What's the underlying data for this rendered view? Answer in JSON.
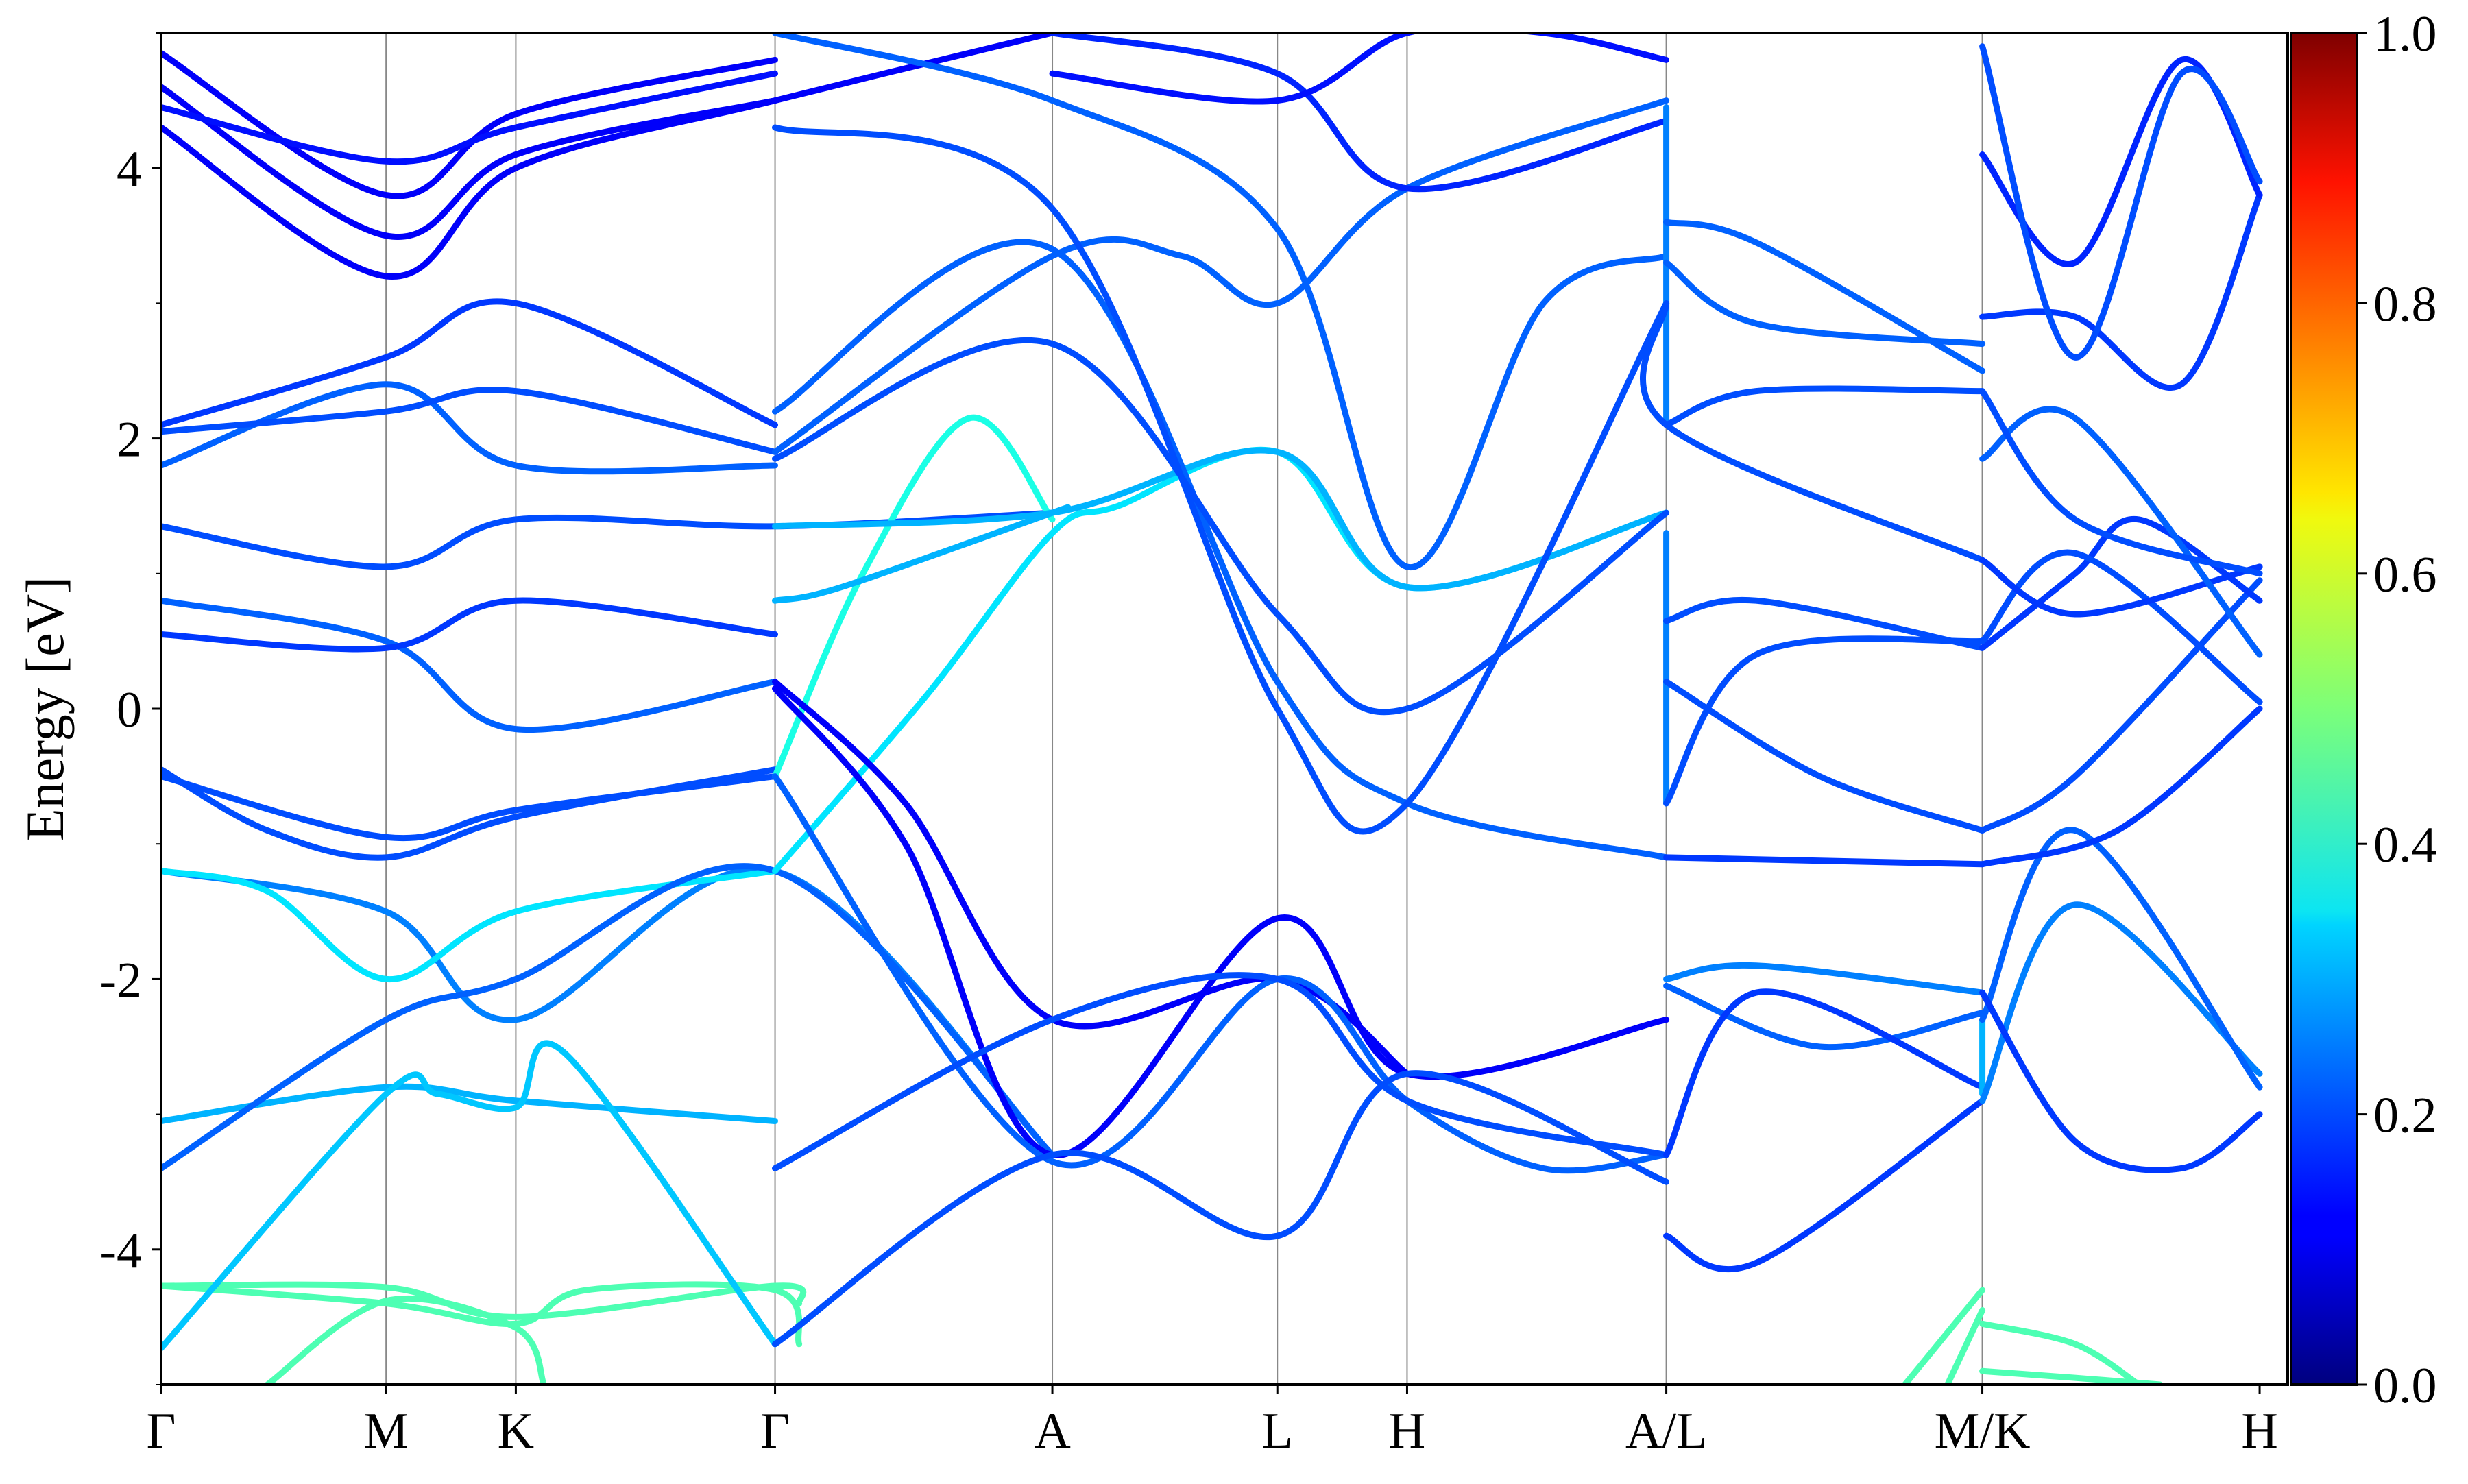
{
  "chart_data": {
    "type": "line",
    "title": "",
    "ylabel": "Energy [eV]",
    "xlabel": "",
    "ylim": [
      -5,
      5
    ],
    "y_ticks": [
      -4,
      -2,
      0,
      2,
      4
    ],
    "y_tick_labels": [
      "-4",
      "-2",
      "0",
      "2",
      "4"
    ],
    "k_path": {
      "x_range": [
        0,
        1
      ],
      "labels": [
        "Γ",
        "M",
        "K",
        "Γ",
        "A",
        "L",
        "H",
        "A/L",
        "M/K",
        "H"
      ],
      "positions": [
        0,
        0.1058,
        0.1668,
        0.2887,
        0.4191,
        0.5249,
        0.5859,
        0.7078,
        0.8564,
        0.9868
      ],
      "discontinuity_jump": 0.0
    },
    "colorbar": {
      "min": 0.0,
      "max": 1.0,
      "ticks": [
        0.0,
        0.2,
        0.4,
        0.6,
        0.8,
        1.0
      ],
      "tick_labels": [
        "0.0",
        "0.2",
        "0.4",
        "0.6",
        "0.8",
        "1.0"
      ],
      "colormap": "jet"
    },
    "series": [
      {
        "w": 0.45,
        "x": [
          0,
          0.1058,
          0.1668,
          0.2887,
          0.3
        ],
        "y": [
          -4.27,
          -4.28,
          -4.5,
          -4.27,
          -4.4
        ]
      },
      {
        "w": 0.45,
        "x": [
          0,
          0.1058,
          0.1668,
          0.2,
          0.2887,
          0.3
        ],
        "y": [
          -4.27,
          -4.4,
          -4.55,
          -4.3,
          -4.3,
          -4.7
        ]
      },
      {
        "w": 0.45,
        "x": [
          0.05,
          0.1058,
          0.1668,
          0.18
        ],
        "y": [
          -5.0,
          -4.38,
          -4.58,
          -5.0
        ]
      },
      {
        "w": 0.45,
        "x": [
          0.8564,
          0.82
        ],
        "y": [
          -4.3,
          -5.0
        ]
      },
      {
        "w": 0.45,
        "x": [
          0.8564,
          0.84
        ],
        "y": [
          -4.45,
          -5.0
        ]
      },
      {
        "w": 0.45,
        "x": [
          0.8564,
          0.9,
          0.93
        ],
        "y": [
          -4.55,
          -4.7,
          -5.0
        ]
      },
      {
        "w": 0.45,
        "x": [
          0.8564,
          0.9,
          0.94
        ],
        "y": [
          -4.9,
          -4.95,
          -5.0
        ]
      },
      {
        "w": 0.3,
        "x": [
          0,
          0.1058,
          0.1668,
          0.2887
        ],
        "y": [
          -3.05,
          -2.8,
          -2.9,
          -3.05
        ]
      },
      {
        "w": 0.32,
        "x": [
          0,
          0.1058,
          0.13,
          0.1668,
          0.19,
          0.2887
        ],
        "y": [
          -4.73,
          -2.85,
          -2.85,
          -2.95,
          -2.55,
          -4.7
        ]
      },
      {
        "w": 0.25,
        "x": [
          0,
          0.1058,
          0.1668,
          0.2887,
          0.4191
        ],
        "y": [
          -1.2,
          -1.5,
          -2.3,
          -1.2,
          -3.3
        ]
      },
      {
        "w": 0.35,
        "x": [
          0,
          0.05,
          0.1058,
          0.1668,
          0.2887
        ],
        "y": [
          -1.2,
          -1.35,
          -2.0,
          -1.5,
          -1.2
        ]
      },
      {
        "w": 0.22,
        "x": [
          0,
          0.1058,
          0.1668,
          0.2887,
          0.4191
        ],
        "y": [
          -3.4,
          -2.3,
          -2.0,
          -1.2,
          -3.3
        ]
      },
      {
        "w": 0.2,
        "x": [
          0,
          0.05,
          0.1058,
          0.1668,
          0.2887
        ],
        "y": [
          -0.45,
          -0.9,
          -1.1,
          -0.8,
          -0.45
        ]
      },
      {
        "w": 0.2,
        "x": [
          0,
          0.1058,
          0.1668,
          0.2887
        ],
        "y": [
          -0.5,
          -0.95,
          -0.75,
          -0.5
        ]
      },
      {
        "w": 0.22,
        "x": [
          0,
          0.1058,
          0.1668,
          0.2887
        ],
        "y": [
          0.8,
          0.5,
          -0.15,
          0.2
        ]
      },
      {
        "w": 0.18,
        "x": [
          0,
          0.1058,
          0.1668,
          0.2887
        ],
        "y": [
          0.55,
          0.45,
          0.8,
          0.55
        ]
      },
      {
        "w": 0.2,
        "x": [
          0,
          0.1058,
          0.1668,
          0.2887,
          0.4191
        ],
        "y": [
          1.35,
          1.05,
          1.4,
          1.35,
          1.45
        ]
      },
      {
        "w": 0.22,
        "x": [
          0,
          0.1058,
          0.1668,
          0.2887
        ],
        "y": [
          1.8,
          2.4,
          1.8,
          1.8
        ]
      },
      {
        "w": 0.2,
        "x": [
          0,
          0.1058,
          0.1668,
          0.2887
        ],
        "y": [
          2.05,
          2.2,
          2.35,
          1.9
        ]
      },
      {
        "w": 0.18,
        "x": [
          0,
          0.1058,
          0.1668,
          0.2887
        ],
        "y": [
          2.1,
          2.6,
          3.0,
          2.1
        ]
      },
      {
        "w": 0.12,
        "x": [
          0,
          0.1058,
          0.1668,
          0.2887,
          0.4191
        ],
        "y": [
          4.3,
          3.2,
          4.0,
          4.5,
          5.0
        ]
      },
      {
        "w": 0.12,
        "x": [
          0,
          0.1058,
          0.1668,
          0.2887
        ],
        "y": [
          4.6,
          3.5,
          4.1,
          4.5
        ]
      },
      {
        "w": 0.12,
        "x": [
          0,
          0.1058,
          0.1668,
          0.2887
        ],
        "y": [
          4.85,
          3.8,
          4.4,
          4.8
        ]
      },
      {
        "w": 0.14,
        "x": [
          0,
          0.1058,
          0.1668,
          0.2887
        ],
        "y": [
          4.45,
          4.05,
          4.3,
          4.7
        ]
      },
      {
        "w": 0.35,
        "x": [
          0.2887,
          0.36,
          0.4191,
          0.45,
          0.5249,
          0.5859,
          0.7078
        ],
        "y": [
          -1.2,
          0.1,
          1.3,
          1.5,
          1.9,
          0.9,
          1.45
        ]
      },
      {
        "w": 0.4,
        "x": [
          0.2887,
          0.33,
          0.38,
          0.4191
        ],
        "y": [
          -0.5,
          1.0,
          2.15,
          1.4
        ]
      },
      {
        "w": 0.3,
        "x": [
          0.2887,
          0.32,
          0.4191,
          0.4191
        ],
        "y": [
          0.8,
          0.9,
          1.45,
          1.45
        ]
      },
      {
        "w": 0.3,
        "x": [
          0.2887,
          0.4191,
          0.5249,
          0.5859,
          0.7078
        ],
        "y": [
          1.35,
          1.45,
          1.9,
          0.9,
          1.45
        ]
      },
      {
        "w": 0.12,
        "x": [
          0.2887,
          0.35,
          0.4191,
          0.5249,
          0.5859
        ],
        "y": [
          0.2,
          -0.7,
          -2.3,
          -2.0,
          -2.7
        ]
      },
      {
        "w": 0.12,
        "x": [
          0.2887,
          0.35,
          0.4191,
          0.5249,
          0.5859,
          0.7078
        ],
        "y": [
          0.15,
          -1.0,
          -3.3,
          -1.55,
          -2.7,
          -2.3
        ]
      },
      {
        "w": 0.22,
        "x": [
          0.2887,
          0.4191,
          0.5249,
          0.5859,
          0.65,
          0.7078
        ],
        "y": [
          -0.5,
          -3.35,
          -2.0,
          -2.9,
          -3.4,
          -3.3
        ]
      },
      {
        "w": 0.2,
        "x": [
          0.2887,
          0.4191,
          0.5249,
          0.5859,
          0.7078
        ],
        "y": [
          -4.7,
          -3.3,
          -3.9,
          -2.7,
          -3.5
        ]
      },
      {
        "w": 0.2,
        "x": [
          0.2887,
          0.4191,
          0.5249,
          0.5859,
          0.7078
        ],
        "y": [
          -3.4,
          -2.3,
          -2.0,
          -2.9,
          -3.3
        ]
      },
      {
        "w": 0.22,
        "x": [
          0.2887,
          0.4191,
          0.48,
          0.5249,
          0.5859,
          0.7078
        ],
        "y": [
          1.9,
          3.35,
          3.35,
          3.0,
          3.85,
          4.5
        ]
      },
      {
        "w": 0.22,
        "x": [
          0.2887,
          0.4191,
          0.5249,
          0.5859,
          0.7078
        ],
        "y": [
          2.2,
          3.4,
          0.2,
          -0.7,
          -1.1
        ]
      },
      {
        "w": 0.2,
        "x": [
          0.2887,
          0.4191,
          0.5249,
          0.5859,
          0.7078
        ],
        "y": [
          1.85,
          2.7,
          0.7,
          0.0,
          1.45
        ]
      },
      {
        "w": 0.2,
        "x": [
          0.2887,
          0.4191,
          0.5249,
          0.5859,
          0.7078
        ],
        "y": [
          4.3,
          3.7,
          0.0,
          -0.7,
          3.0
        ]
      },
      {
        "w": 0.22,
        "x": [
          0.2887,
          0.4191,
          0.5249,
          0.5859,
          0.65,
          0.7078
        ],
        "y": [
          5.0,
          4.5,
          3.55,
          1.05,
          3.0,
          3.35
        ]
      },
      {
        "w": 0.16,
        "x": [
          0.4191,
          0.5249,
          0.5859,
          0.7078
        ],
        "y": [
          5.0,
          4.7,
          3.85,
          4.35
        ]
      },
      {
        "w": 0.14,
        "x": [
          0.4191,
          0.5249,
          0.5859,
          0.65,
          0.7078
        ],
        "y": [
          4.7,
          4.5,
          5.0,
          5.0,
          4.8
        ]
      },
      {
        "w": 0.25,
        "x": [
          0.7078,
          0.7078
        ],
        "y": [
          1.3,
          -0.7
        ]
      },
      {
        "w": 0.25,
        "x": [
          0.7078,
          0.7078
        ],
        "y": [
          4.45,
          2.1
        ]
      },
      {
        "w": 0.22,
        "x": [
          0.7078,
          0.75,
          0.8564
        ],
        "y": [
          3.6,
          3.45,
          2.5
        ]
      },
      {
        "w": 0.22,
        "x": [
          0.7078,
          0.75,
          0.8564
        ],
        "y": [
          3.3,
          2.85,
          2.7
        ]
      },
      {
        "w": 0.2,
        "x": [
          0.7078,
          0.7078,
          0.8564
        ],
        "y": [
          3.0,
          2.1,
          1.1
        ]
      },
      {
        "w": 0.2,
        "x": [
          0.7078,
          0.75,
          0.8564
        ],
        "y": [
          2.1,
          2.35,
          2.35
        ]
      },
      {
        "w": 0.2,
        "x": [
          0.7078,
          0.75,
          0.8564
        ],
        "y": [
          0.65,
          0.8,
          0.45
        ]
      },
      {
        "w": 0.2,
        "x": [
          0.7078,
          0.78,
          0.8564
        ],
        "y": [
          0.2,
          -0.5,
          -0.9
        ]
      },
      {
        "w": 0.2,
        "x": [
          0.7078,
          0.75,
          0.8564
        ],
        "y": [
          -0.7,
          0.4,
          0.5
        ]
      },
      {
        "w": 0.18,
        "x": [
          0.7078,
          0.8564
        ],
        "y": [
          -1.1,
          -1.15
        ]
      },
      {
        "w": 0.25,
        "x": [
          0.7078,
          0.75,
          0.8564
        ],
        "y": [
          -2.0,
          -1.9,
          -2.1
        ]
      },
      {
        "w": 0.22,
        "x": [
          0.7078,
          0.78,
          0.8564
        ],
        "y": [
          -2.05,
          -2.5,
          -2.25
        ]
      },
      {
        "w": 0.18,
        "x": [
          0.7078,
          0.75,
          0.8564
        ],
        "y": [
          -3.9,
          -4.1,
          -2.9
        ]
      },
      {
        "w": 0.18,
        "x": [
          0.7078,
          0.75,
          0.8564
        ],
        "y": [
          -3.3,
          -2.1,
          -2.8
        ]
      },
      {
        "w": 0.3,
        "x": [
          0.8564,
          0.8564
        ],
        "y": [
          -2.85,
          -2.3
        ]
      },
      {
        "w": 0.25,
        "x": [
          0.8564,
          0.9,
          0.9868
        ],
        "y": [
          -2.9,
          -1.45,
          -2.7
        ]
      },
      {
        "w": 0.22,
        "x": [
          0.8564,
          0.9,
          0.9868
        ],
        "y": [
          -2.3,
          -0.9,
          -2.8
        ]
      },
      {
        "w": 0.18,
        "x": [
          0.8564,
          0.9,
          0.95,
          0.9868
        ],
        "y": [
          -2.1,
          -3.2,
          -3.4,
          -3.0
        ]
      },
      {
        "w": 0.18,
        "x": [
          0.8564,
          0.92,
          0.9868
        ],
        "y": [
          -1.15,
          -0.9,
          0.0
        ]
      },
      {
        "w": 0.2,
        "x": [
          0.8564,
          0.9,
          0.9868
        ],
        "y": [
          -0.9,
          -0.5,
          0.95
        ]
      },
      {
        "w": 0.18,
        "x": [
          0.8564,
          0.9,
          0.93,
          0.9868
        ],
        "y": [
          0.45,
          1.0,
          1.4,
          0.8
        ]
      },
      {
        "w": 0.2,
        "x": [
          0.8564,
          0.9,
          0.9868
        ],
        "y": [
          0.5,
          1.15,
          0.05
        ]
      },
      {
        "w": 0.18,
        "x": [
          0.8564,
          0.9,
          0.9868
        ],
        "y": [
          1.1,
          0.7,
          1.05
        ]
      },
      {
        "w": 0.22,
        "x": [
          0.8564,
          0.9,
          0.9868
        ],
        "y": [
          1.85,
          2.15,
          0.4
        ]
      },
      {
        "w": 0.2,
        "x": [
          0.8564,
          0.9,
          0.9868
        ],
        "y": [
          2.35,
          1.4,
          1.0
        ]
      },
      {
        "w": 0.18,
        "x": [
          0.8564,
          0.9,
          0.95,
          0.9868
        ],
        "y": [
          2.9,
          2.9,
          2.4,
          3.8
        ]
      },
      {
        "w": 0.16,
        "x": [
          0.8564,
          0.9,
          0.95,
          0.9868
        ],
        "y": [
          4.1,
          3.3,
          4.8,
          3.8
        ]
      },
      {
        "w": 0.2,
        "x": [
          0.8564,
          0.9,
          0.95,
          0.9868
        ],
        "y": [
          4.9,
          2.6,
          4.7,
          3.9
        ]
      }
    ]
  }
}
